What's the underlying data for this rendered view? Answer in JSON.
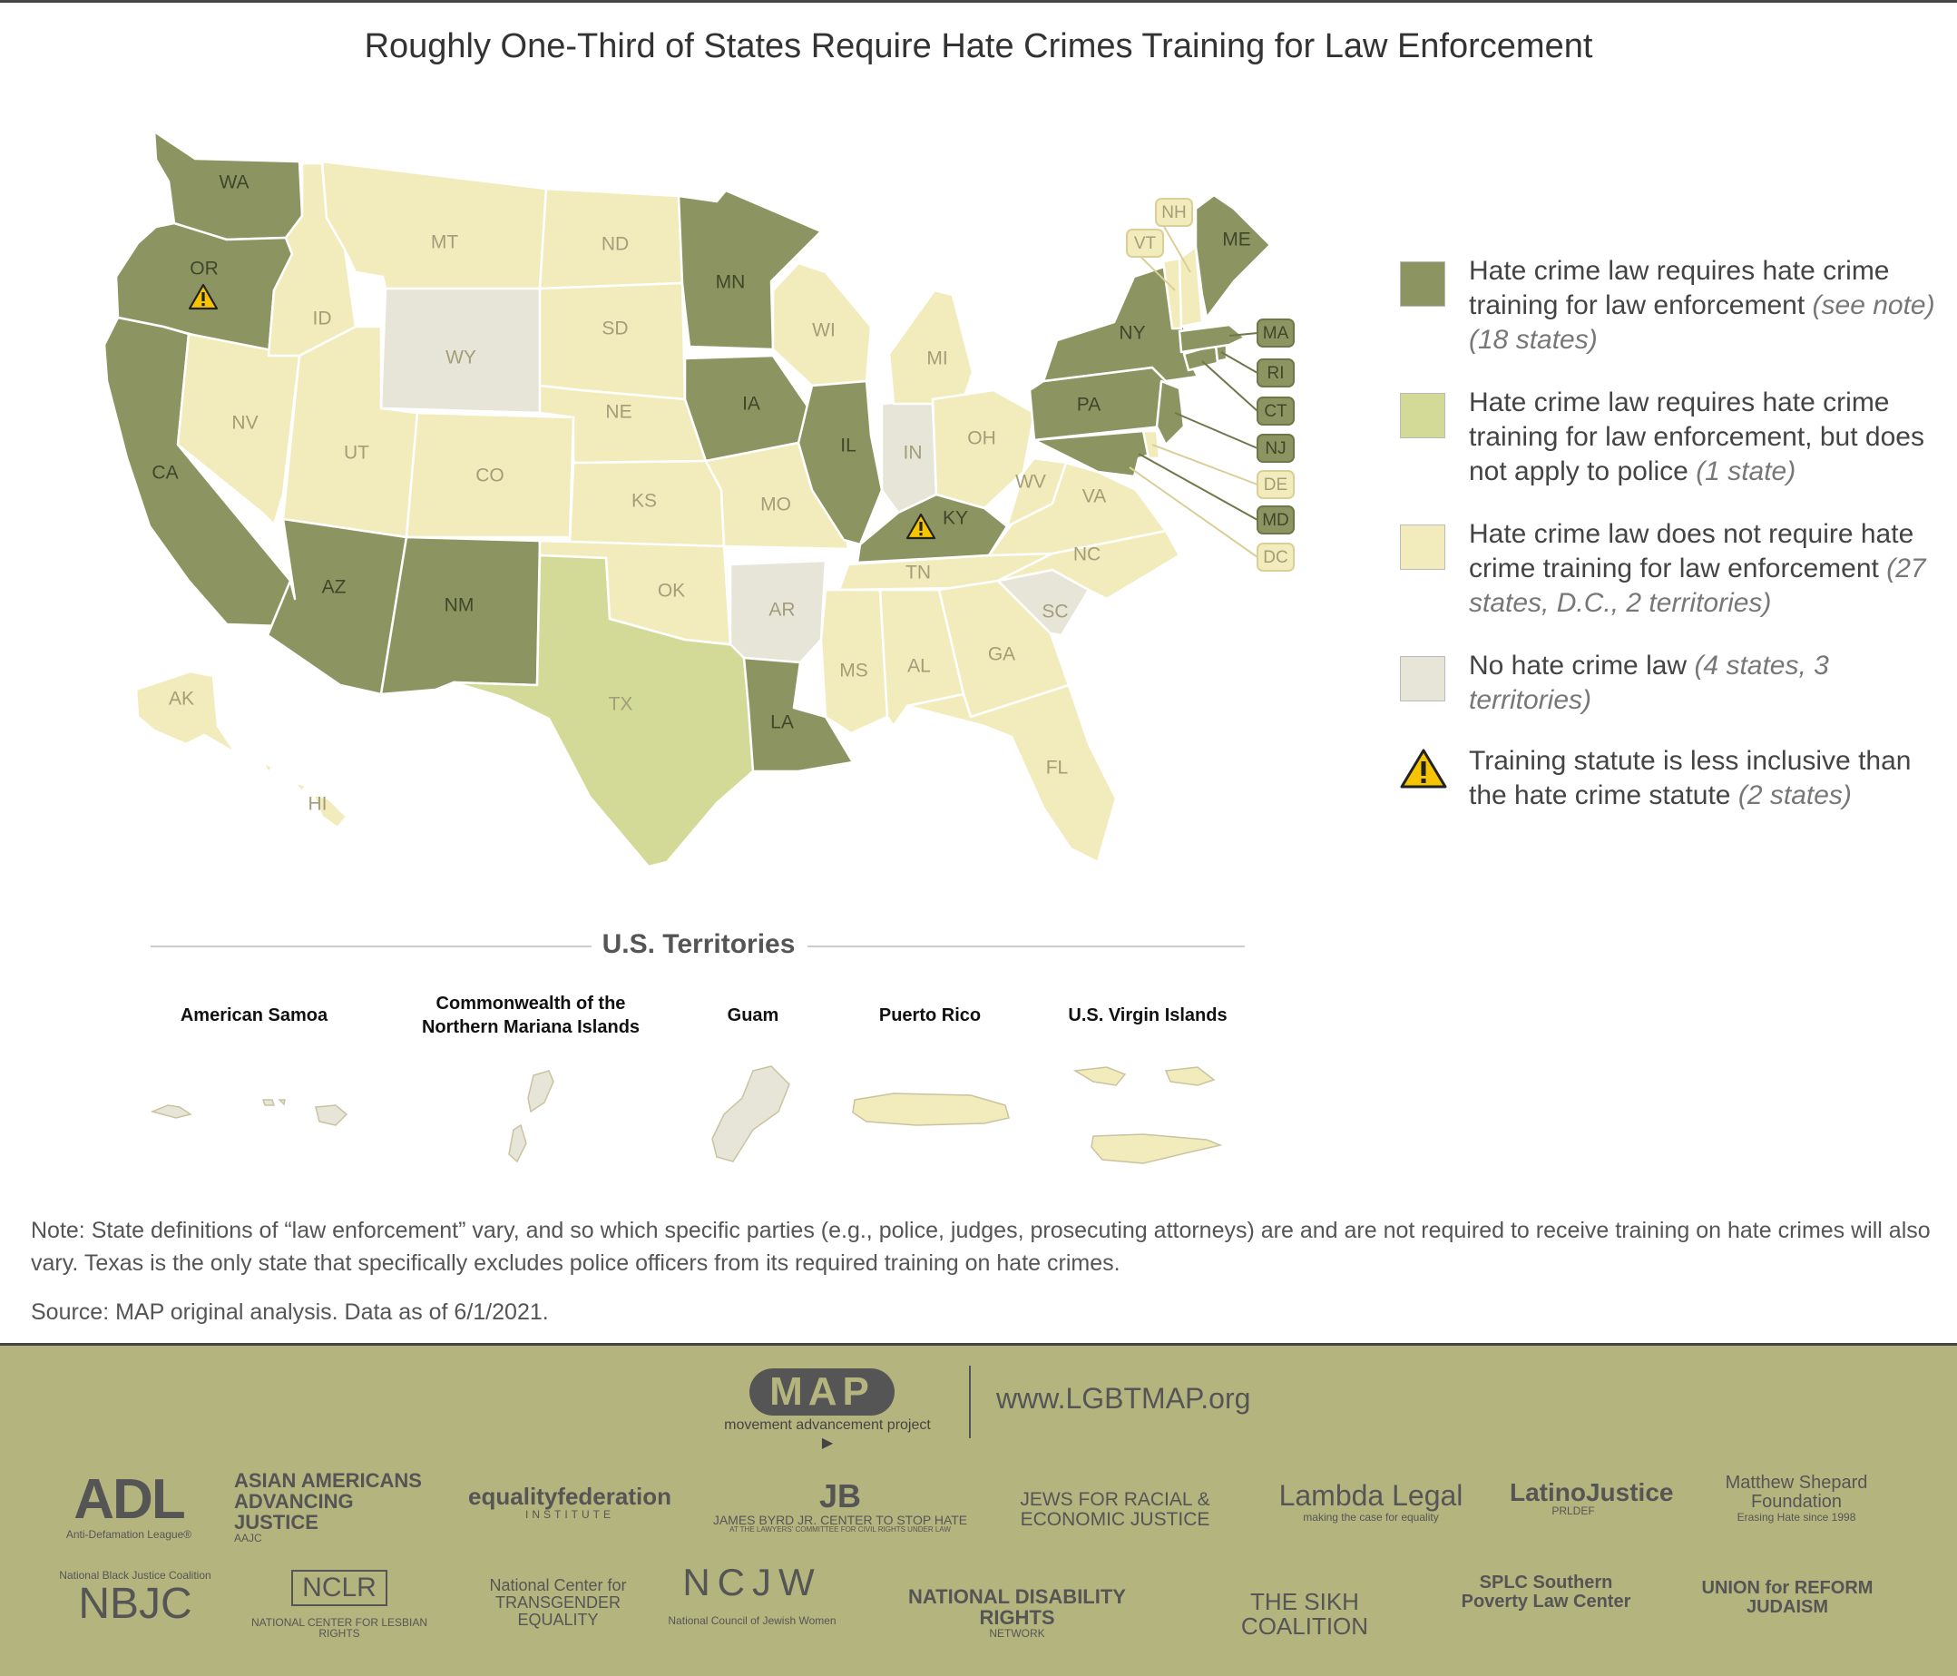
{
  "title": "Roughly One-Third of States Require Hate Crimes Training for Law Enforcement",
  "colors": {
    "requires": "#8c9562",
    "requires_not_police": "#d3da98",
    "does_not_require": "#f2ebbb",
    "no_law": "#e7e5d8",
    "warning": "#f6c400"
  },
  "legend": [
    {
      "key": "requires",
      "text": "Hate crime law requires hate crime training for law enforcement",
      "note": "(see note) (18 states)"
    },
    {
      "key": "requires_not_police",
      "text": "Hate crime law requires hate crime training for law enforcement, but does not apply to police",
      "note": "(1 state)"
    },
    {
      "key": "does_not_require",
      "text": "Hate crime law does not require hate crime training for law enforcement",
      "note": "(27 states, D.C., 2 territories)"
    },
    {
      "key": "no_law",
      "text": "No hate crime law",
      "note": "(4 states, 3 territories)"
    },
    {
      "key": "warning",
      "text": "Training statute is less inclusive than the hate crime statute",
      "note": "(2 states)"
    }
  ],
  "icons": {
    "warning": "warning-triangle-icon"
  },
  "states": {
    "WA": "requires",
    "OR": "requires",
    "CA": "requires",
    "AZ": "requires",
    "NM": "requires",
    "MN": "requires",
    "IA": "requires",
    "IL": "requires",
    "LA": "requires",
    "KY": "requires",
    "NY": "requires",
    "PA": "requires",
    "ME": "requires",
    "MA": "requires",
    "RI": "requires",
    "CT": "requires",
    "NJ": "requires",
    "MD": "requires",
    "TX": "requires_not_police",
    "WY": "no_law",
    "IN": "no_law",
    "AR": "no_law",
    "SC": "no_law",
    "ID": "does_not_require",
    "MT": "does_not_require",
    "ND": "does_not_require",
    "SD": "does_not_require",
    "NE": "does_not_require",
    "KS": "does_not_require",
    "OK": "does_not_require",
    "CO": "does_not_require",
    "UT": "does_not_require",
    "NV": "does_not_require",
    "WI": "does_not_require",
    "MI": "does_not_require",
    "MO": "does_not_require",
    "OH": "does_not_require",
    "WV": "does_not_require",
    "VA": "does_not_require",
    "NC": "does_not_require",
    "TN": "does_not_require",
    "MS": "does_not_require",
    "AL": "does_not_require",
    "GA": "does_not_require",
    "FL": "does_not_require",
    "AK": "does_not_require",
    "HI": "does_not_require",
    "NH": "does_not_require",
    "VT": "does_not_require",
    "DE": "does_not_require",
    "DC": "does_not_require"
  },
  "warning_states": [
    "OR",
    "KY"
  ],
  "territories_title": "U.S. Territories",
  "territories": [
    {
      "name": "American Samoa",
      "status": "no_law"
    },
    {
      "name": "Commonwealth of the Northern Mariana Islands",
      "status": "no_law"
    },
    {
      "name": "Guam",
      "status": "no_law"
    },
    {
      "name": "Puerto Rico",
      "status": "does_not_require"
    },
    {
      "name": "U.S. Virgin Islands",
      "status": "does_not_require"
    }
  ],
  "note": "Note: State definitions of “law enforcement” vary, and so which specific parties (e.g., police, judges, prosecuting attorneys) are and are not required to receive training on hate crimes will also vary. Texas is the only state that specifically excludes police officers from its required training on hate crimes.",
  "source": "Source: MAP original analysis. Data as of 6/1/2021.",
  "footer": {
    "logo": "MAP",
    "tagline": "movement advancement project ▶",
    "url": "www.LGBTMAP.org",
    "partners": [
      {
        "name": "ADL",
        "sub": "Anti-Defamation League®"
      },
      {
        "name": "ASIAN AMERICANS ADVANCING JUSTICE",
        "sub": "AAJC"
      },
      {
        "name": "equalityfederation",
        "sub": "INSTITUTE"
      },
      {
        "name": "JAMES BYRD JR. CENTER TO STOP HATE",
        "sub": "AT THE LAWYERS' COMMITTEE FOR CIVIL RIGHTS UNDER LAW"
      },
      {
        "name": "JEWS FOR RACIAL & ECONOMIC JUSTICE",
        "sub": ""
      },
      {
        "name": "Lambda Legal",
        "sub": "making the case for equality"
      },
      {
        "name": "LatinoJustice",
        "sub": "PRLDEF"
      },
      {
        "name": "Matthew Shepard Foundation",
        "sub": "Erasing Hate since 1998"
      },
      {
        "name": "NBJC",
        "sub": "National Black Justice Coalition"
      },
      {
        "name": "NCLR",
        "sub": "NATIONAL CENTER FOR LESBIAN RIGHTS"
      },
      {
        "name": "National Center for TRANSGENDER EQUALITY",
        "sub": ""
      },
      {
        "name": "NCJW",
        "sub": "National Council of Jewish Women"
      },
      {
        "name": "NATIONAL DISABILITY RIGHTS",
        "sub": "NETWORK"
      },
      {
        "name": "THE SIKH COALITION",
        "sub": ""
      },
      {
        "name": "SPLC Southern Poverty Law Center",
        "sub": ""
      },
      {
        "name": "UNION for REFORM JUDAISM",
        "sub": ""
      }
    ]
  }
}
